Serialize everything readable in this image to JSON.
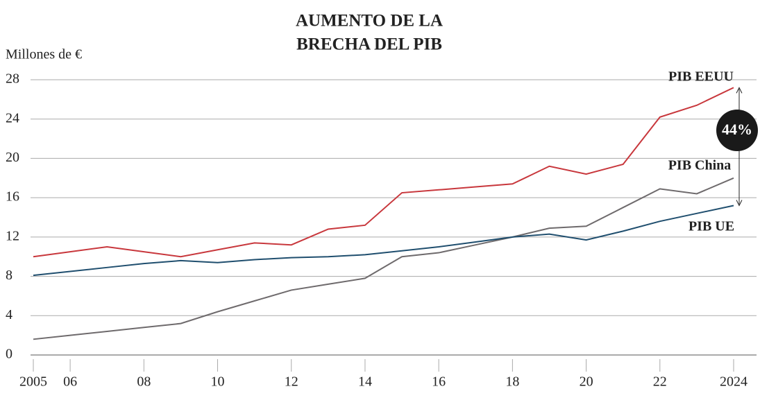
{
  "chart_data": {
    "type": "line",
    "title": [
      "AUMENTO DE LA",
      "BRECHA DEL PIB"
    ],
    "y_label": "Millones de €",
    "annotation": "44%",
    "x": [
      2005,
      2006,
      2007,
      2008,
      2009,
      2010,
      2011,
      2012,
      2013,
      2014,
      2015,
      2016,
      2017,
      2018,
      2019,
      2020,
      2021,
      2022,
      2023,
      2024
    ],
    "series": [
      {
        "name": "PIB EEUU",
        "color": "#c8373c",
        "values": [
          10,
          10.5,
          11,
          10.5,
          10,
          10.7,
          11.4,
          11.2,
          12.8,
          13.2,
          16.5,
          16.8,
          17.1,
          17.4,
          19.2,
          18.4,
          19.4,
          24.2,
          25.4,
          27.2
        ]
      },
      {
        "name": "PIB China",
        "color": "#6e6a6c",
        "values": [
          1.6,
          2.0,
          2.4,
          2.8,
          3.2,
          4.4,
          5.5,
          6.6,
          7.2,
          7.8,
          10.0,
          10.4,
          11.2,
          12.0,
          12.9,
          13.1,
          15.0,
          16.9,
          16.4,
          18.0
        ]
      },
      {
        "name": "PIB UE",
        "color": "#1f4e6e",
        "values": [
          8.1,
          8.5,
          8.9,
          9.3,
          9.6,
          9.4,
          9.7,
          9.9,
          10.0,
          10.2,
          10.6,
          11.0,
          11.5,
          12.0,
          12.3,
          11.7,
          12.6,
          13.6,
          14.4,
          15.2
        ]
      }
    ],
    "xlim": [
      2005,
      2024
    ],
    "xticks": [
      2005,
      {
        "value": 2006,
        "label": "06"
      },
      {
        "value": 2008,
        "label": "08"
      },
      {
        "value": 2010,
        "label": "10"
      },
      {
        "value": 2012,
        "label": "12"
      },
      {
        "value": 2014,
        "label": "14"
      },
      {
        "value": 2016,
        "label": "16"
      },
      {
        "value": 2018,
        "label": "18"
      },
      {
        "value": 2020,
        "label": "20"
      },
      {
        "value": 2022,
        "label": "22"
      },
      2024
    ],
    "ylim": [
      0,
      28
    ],
    "yticks": [
      0,
      4,
      8,
      12,
      16,
      20,
      24,
      28
    ],
    "grid": true
  }
}
